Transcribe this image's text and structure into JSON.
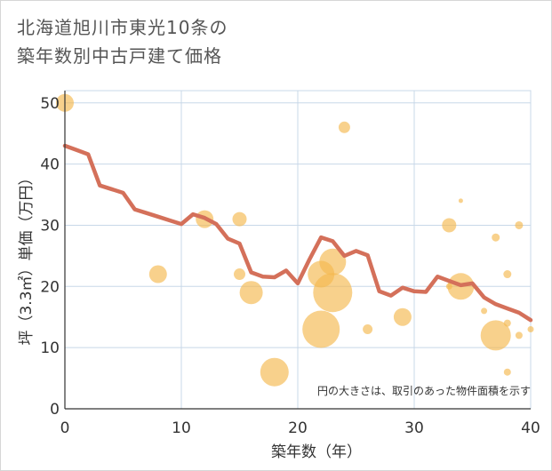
{
  "chart_data": {
    "type": "scatter",
    "title_line1": "北海道旭川市東光10条の",
    "title_line2": "築年数別中古戸建て価格",
    "xlabel": "築年数（年）",
    "ylabel": "坪（3.3㎡）単価（万円）",
    "xlim": [
      0,
      40
    ],
    "ylim": [
      0,
      52
    ],
    "xticks": [
      0,
      10,
      20,
      30,
      40
    ],
    "yticks": [
      0,
      10,
      20,
      30,
      40,
      50
    ],
    "grid": true,
    "note": "円の大きさは、取引のあった物件面積を示す",
    "colors": {
      "bubble": "#f5b94e",
      "line": "#d4705a",
      "grid": "#c8d8e8",
      "axis": "#333333"
    },
    "points": [
      {
        "x": 0,
        "y": 50,
        "size": 2
      },
      {
        "x": 8,
        "y": 22,
        "size": 2
      },
      {
        "x": 12,
        "y": 31,
        "size": 2
      },
      {
        "x": 15,
        "y": 31,
        "size": 1.6
      },
      {
        "x": 15,
        "y": 22,
        "size": 1.3
      },
      {
        "x": 16,
        "y": 19,
        "size": 2.6
      },
      {
        "x": 18,
        "y": 6,
        "size": 3.2
      },
      {
        "x": 22,
        "y": 22,
        "size": 3
      },
      {
        "x": 22,
        "y": 13,
        "size": 4.2
      },
      {
        "x": 23,
        "y": 24,
        "size": 3
      },
      {
        "x": 23,
        "y": 19,
        "size": 4.4
      },
      {
        "x": 24,
        "y": 46,
        "size": 1.3
      },
      {
        "x": 26,
        "y": 13,
        "size": 1.1
      },
      {
        "x": 29,
        "y": 15,
        "size": 2
      },
      {
        "x": 33,
        "y": 30,
        "size": 1.6
      },
      {
        "x": 33,
        "y": 20,
        "size": 0.7
      },
      {
        "x": 34,
        "y": 34,
        "size": 0.5
      },
      {
        "x": 34,
        "y": 20,
        "size": 3
      },
      {
        "x": 36,
        "y": 16,
        "size": 0.7
      },
      {
        "x": 37,
        "y": 28,
        "size": 0.9
      },
      {
        "x": 37,
        "y": 12,
        "size": 3.4
      },
      {
        "x": 38,
        "y": 22,
        "size": 0.9
      },
      {
        "x": 38,
        "y": 14,
        "size": 0.8
      },
      {
        "x": 38,
        "y": 6,
        "size": 0.8
      },
      {
        "x": 39,
        "y": 30,
        "size": 0.9
      },
      {
        "x": 39,
        "y": 12,
        "size": 0.8
      },
      {
        "x": 40,
        "y": 13,
        "size": 0.7
      }
    ],
    "trend": {
      "x": [
        0,
        1,
        2,
        3,
        4,
        5,
        6,
        7,
        8,
        9,
        10,
        11,
        12,
        13,
        14,
        15,
        16,
        17,
        18,
        19,
        20,
        21,
        22,
        23,
        24,
        25,
        26,
        27,
        28,
        29,
        30,
        31,
        32,
        33,
        34,
        35,
        36,
        37,
        38,
        39,
        40
      ],
      "y": [
        43,
        42.3,
        41.6,
        36.5,
        35.9,
        35.3,
        32.6,
        32,
        31.4,
        30.8,
        30.2,
        31.8,
        31.2,
        30.2,
        27.8,
        27,
        22.3,
        21.6,
        21.5,
        22.6,
        20.5,
        24.4,
        28,
        27.4,
        25,
        25.8,
        25.1,
        19.2,
        18.5,
        19.8,
        19.2,
        19.1,
        21.6,
        20.9,
        20.2,
        20.5,
        18.2,
        17.1,
        16.4,
        15.7,
        14.5
      ]
    }
  }
}
